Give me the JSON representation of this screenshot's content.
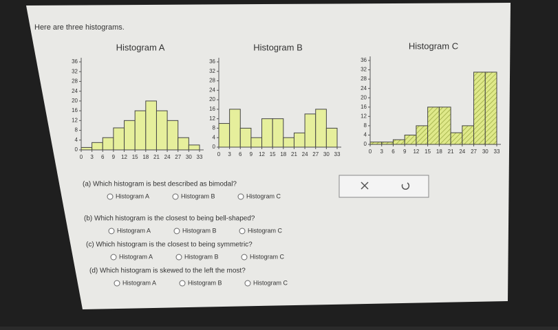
{
  "intro": "Here are three histograms.",
  "chart_data": [
    {
      "type": "histogram",
      "title": "Histogram A",
      "bins": [
        0,
        3,
        6,
        9,
        12,
        15,
        18,
        21,
        24,
        27,
        30,
        33
      ],
      "values": [
        1,
        3,
        5,
        9,
        12,
        16,
        20,
        16,
        12,
        5,
        2
      ],
      "color": "#e6ef9c",
      "xlim": [
        0,
        33
      ],
      "ylim": [
        0,
        36
      ],
      "xticks": [
        0,
        3,
        6,
        9,
        12,
        15,
        18,
        21,
        24,
        27,
        30,
        33
      ],
      "yticks": [
        0,
        4,
        8,
        12,
        16,
        20,
        24,
        28,
        32,
        36
      ]
    },
    {
      "type": "histogram",
      "title": "Histogram B",
      "bins": [
        0,
        3,
        6,
        9,
        12,
        15,
        18,
        21,
        24,
        27,
        30,
        33
      ],
      "values": [
        10,
        16,
        8,
        4,
        12,
        12,
        4,
        6,
        14,
        16,
        8
      ],
      "color": "#e6ef9c",
      "xlim": [
        0,
        33
      ],
      "ylim": [
        0,
        36
      ],
      "xticks": [
        0,
        3,
        6,
        9,
        12,
        15,
        18,
        21,
        24,
        27,
        30,
        33
      ],
      "yticks": [
        0,
        4,
        8,
        12,
        16,
        20,
        24,
        28,
        32,
        36
      ]
    },
    {
      "type": "histogram",
      "title": "Histogram C",
      "bins": [
        0,
        3,
        6,
        9,
        12,
        15,
        18,
        21,
        24,
        27,
        30,
        33
      ],
      "values": [
        1,
        1,
        2,
        4,
        8,
        16,
        16,
        5,
        8,
        31,
        31
      ],
      "color": "#dfe98a",
      "xlim": [
        0,
        33
      ],
      "ylim": [
        0,
        36
      ],
      "xticks": [
        0,
        3,
        6,
        9,
        12,
        15,
        18,
        21,
        24,
        27,
        30,
        33
      ],
      "yticks": [
        0,
        4,
        8,
        12,
        16,
        20,
        24,
        28,
        32,
        36
      ]
    }
  ],
  "questions": [
    {
      "text": "(a) Which histogram is best described as bimodal?",
      "options": [
        "Histogram A",
        "Histogram B",
        "Histogram C"
      ]
    },
    {
      "text": "(b) Which histogram is the closest to being bell-shaped?",
      "options": [
        "Histogram A",
        "Histogram B",
        "Histogram C"
      ]
    },
    {
      "text": "(c) Which histogram is the closest to being symmetric?",
      "options": [
        "Histogram A",
        "Histogram B",
        "Histogram C"
      ]
    },
    {
      "text": "(d) Which histogram is skewed to the left the most?",
      "options": [
        "Histogram A",
        "Histogram B",
        "Histogram C"
      ]
    }
  ]
}
